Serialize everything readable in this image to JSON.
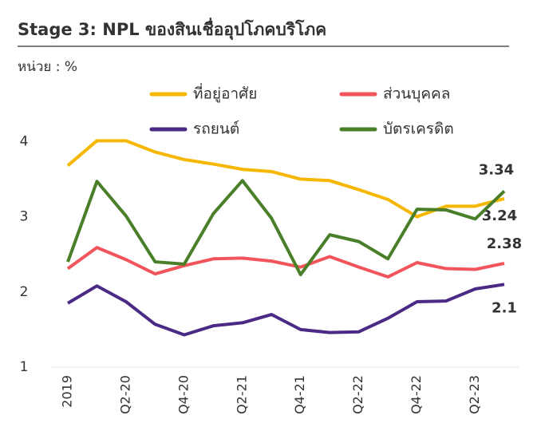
{
  "chart_data": {
    "type": "line",
    "title": "Stage 3: NPL ของสินเชื่ออุปโภคบริโภค",
    "subtitle": "หน่วย : %",
    "categories": [
      "2019",
      null,
      "Q2-20",
      null,
      "Q4-20",
      null,
      "Q2-21",
      null,
      "Q4-21",
      null,
      "Q2-22",
      null,
      "Q4-22",
      null,
      "Q2-23",
      null
    ],
    "ylim": [
      1,
      4.3
    ],
    "yticks": [
      1,
      2,
      3,
      4
    ],
    "grid": false,
    "series": [
      {
        "name": "ที่อยู่อาศัย",
        "color": "#f6b700",
        "values": [
          3.68,
          4.01,
          4.01,
          3.86,
          3.76,
          3.7,
          3.63,
          3.6,
          3.5,
          3.48,
          3.36,
          3.23,
          3.0,
          3.14,
          3.14,
          3.24
        ]
      },
      {
        "name": "ส่วนบุคคล",
        "color": "#f2545b",
        "values": [
          2.31,
          2.59,
          2.43,
          2.24,
          2.35,
          2.44,
          2.45,
          2.41,
          2.33,
          2.47,
          2.33,
          2.2,
          2.39,
          2.31,
          2.3,
          2.38
        ]
      },
      {
        "name": "รถยนต์",
        "color": "#4b2a86",
        "values": [
          1.85,
          2.08,
          1.87,
          1.57,
          1.43,
          1.55,
          1.59,
          1.7,
          1.5,
          1.46,
          1.47,
          1.65,
          1.87,
          1.88,
          2.04,
          2.1
        ]
      },
      {
        "name": "บัตรเครดิต",
        "color": "#4a7f2a",
        "values": [
          2.4,
          3.47,
          3.01,
          2.4,
          2.37,
          3.04,
          3.48,
          2.98,
          2.23,
          2.76,
          2.67,
          2.44,
          3.1,
          3.09,
          2.97,
          3.34
        ]
      }
    ]
  }
}
